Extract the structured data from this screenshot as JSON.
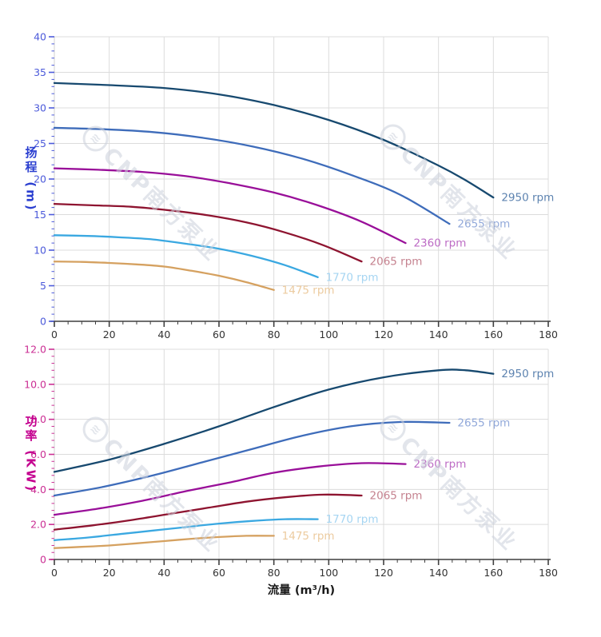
{
  "page": {
    "background": "#ffffff"
  },
  "watermark": {
    "logo_glyph": "≋",
    "text": "CNP南方泵业",
    "color": "#ccd1dc"
  },
  "x_axis": {
    "title": "流量 (m³/h)"
  },
  "chart_data": [
    {
      "type": "line",
      "name": "head-vs-flow",
      "ylabel": "扬程 (m)",
      "xlabel": "流量 (m³/h)",
      "xlim": [
        0,
        180
      ],
      "ylim": [
        0,
        40
      ],
      "x_major": 20,
      "x_minor": 5,
      "y_major": 5,
      "y_minor": 1,
      "x_tick_labels": [
        "0",
        "20",
        "40",
        "60",
        "80",
        "100",
        "120",
        "140",
        "160",
        "180"
      ],
      "y_tick_labels": [
        "0",
        "5",
        "10",
        "15",
        "20",
        "25",
        "30",
        "35",
        "40"
      ],
      "accent": "#4c5ada",
      "grid": true,
      "legend_position": "at-line-end",
      "series": [
        {
          "name": "2950 rpm",
          "color": "#17496f",
          "label_color": "#5d83b0",
          "points": [
            [
              0,
              33.5
            ],
            [
              20,
              33.2
            ],
            [
              40,
              32.8
            ],
            [
              60,
              31.9
            ],
            [
              80,
              30.4
            ],
            [
              100,
              28.3
            ],
            [
              120,
              25.5
            ],
            [
              140,
              21.9
            ],
            [
              150,
              19.8
            ],
            [
              160,
              17.4
            ]
          ]
        },
        {
          "name": "2655 rpm",
          "color": "#3e6cba",
          "label_color": "#92a9da",
          "points": [
            [
              0,
              27.2
            ],
            [
              18,
              27.0
            ],
            [
              36,
              26.6
            ],
            [
              54,
              25.8
            ],
            [
              72,
              24.6
            ],
            [
              90,
              22.9
            ],
            [
              108,
              20.6
            ],
            [
              126,
              17.8
            ],
            [
              144,
              13.7
            ]
          ]
        },
        {
          "name": "2360 rpm",
          "color": "#990f99",
          "label_color": "#bd6cc5",
          "points": [
            [
              0,
              21.5
            ],
            [
              16,
              21.3
            ],
            [
              32,
              21.0
            ],
            [
              48,
              20.4
            ],
            [
              64,
              19.4
            ],
            [
              80,
              18.1
            ],
            [
              96,
              16.3
            ],
            [
              112,
              14.0
            ],
            [
              128,
              11.0
            ]
          ]
        },
        {
          "name": "2065 rpm",
          "color": "#8e1430",
          "label_color": "#c5828f",
          "points": [
            [
              0,
              16.5
            ],
            [
              14,
              16.3
            ],
            [
              28,
              16.1
            ],
            [
              42,
              15.6
            ],
            [
              56,
              14.9
            ],
            [
              70,
              13.9
            ],
            [
              84,
              12.5
            ],
            [
              98,
              10.7
            ],
            [
              112,
              8.4
            ]
          ]
        },
        {
          "name": "1770 rpm",
          "color": "#3aa8e1",
          "label_color": "#a6d5f2",
          "points": [
            [
              0,
              12.1
            ],
            [
              12,
              12.0
            ],
            [
              24,
              11.8
            ],
            [
              36,
              11.5
            ],
            [
              48,
              10.9
            ],
            [
              60,
              10.2
            ],
            [
              72,
              9.2
            ],
            [
              84,
              7.9
            ],
            [
              96,
              6.2
            ]
          ]
        },
        {
          "name": "1475 rpm",
          "color": "#d5a160",
          "label_color": "#eccb9f",
          "points": [
            [
              0,
              8.4
            ],
            [
              10,
              8.35
            ],
            [
              20,
              8.2
            ],
            [
              30,
              8.0
            ],
            [
              40,
              7.7
            ],
            [
              50,
              7.1
            ],
            [
              60,
              6.4
            ],
            [
              70,
              5.5
            ],
            [
              80,
              4.4
            ]
          ]
        }
      ]
    },
    {
      "type": "line",
      "name": "power-vs-flow",
      "ylabel": "功率 (KW)",
      "xlabel": "流量 (m³/h)",
      "xlim": [
        0,
        180
      ],
      "ylim": [
        0,
        12
      ],
      "x_major": 20,
      "x_minor": 5,
      "y_major": 2,
      "y_minor": 0.4,
      "x_tick_labels": [
        "0",
        "20",
        "40",
        "60",
        "80",
        "100",
        "120",
        "140",
        "160",
        "180"
      ],
      "y_tick_labels": [
        "0",
        "2.0",
        "4.0",
        "6.0",
        "8.0",
        "10.0",
        "12.0"
      ],
      "accent": "#cb2f94",
      "grid": true,
      "legend_position": "at-line-end",
      "series": [
        {
          "name": "2950 rpm",
          "color": "#17496f",
          "label_color": "#5d83b0",
          "points": [
            [
              0,
              5.0
            ],
            [
              20,
              5.7
            ],
            [
              40,
              6.6
            ],
            [
              60,
              7.6
            ],
            [
              80,
              8.7
            ],
            [
              100,
              9.7
            ],
            [
              120,
              10.4
            ],
            [
              140,
              10.8
            ],
            [
              150,
              10.8
            ],
            [
              160,
              10.6
            ]
          ]
        },
        {
          "name": "2655 rpm",
          "color": "#3e6cba",
          "label_color": "#92a9da",
          "points": [
            [
              0,
              3.65
            ],
            [
              18,
              4.15
            ],
            [
              36,
              4.8
            ],
            [
              54,
              5.55
            ],
            [
              72,
              6.3
            ],
            [
              90,
              7.05
            ],
            [
              108,
              7.6
            ],
            [
              126,
              7.85
            ],
            [
              144,
              7.8
            ]
          ]
        },
        {
          "name": "2360 rpm",
          "color": "#990f99",
          "label_color": "#bd6cc5",
          "points": [
            [
              0,
              2.55
            ],
            [
              16,
              2.9
            ],
            [
              32,
              3.35
            ],
            [
              48,
              3.9
            ],
            [
              64,
              4.4
            ],
            [
              80,
              4.95
            ],
            [
              96,
              5.3
            ],
            [
              112,
              5.5
            ],
            [
              128,
              5.45
            ]
          ]
        },
        {
          "name": "2065 rpm",
          "color": "#8e1430",
          "label_color": "#c5828f",
          "points": [
            [
              0,
              1.7
            ],
            [
              14,
              1.95
            ],
            [
              28,
              2.25
            ],
            [
              42,
              2.6
            ],
            [
              56,
              2.95
            ],
            [
              70,
              3.3
            ],
            [
              84,
              3.55
            ],
            [
              98,
              3.7
            ],
            [
              112,
              3.65
            ]
          ]
        },
        {
          "name": "1770 rpm",
          "color": "#3aa8e1",
          "label_color": "#a6d5f2",
          "points": [
            [
              0,
              1.1
            ],
            [
              12,
              1.25
            ],
            [
              24,
              1.45
            ],
            [
              36,
              1.65
            ],
            [
              48,
              1.85
            ],
            [
              60,
              2.05
            ],
            [
              72,
              2.2
            ],
            [
              84,
              2.3
            ],
            [
              96,
              2.3
            ]
          ]
        },
        {
          "name": "1475 rpm",
          "color": "#d5a160",
          "label_color": "#eccb9f",
          "points": [
            [
              0,
              0.65
            ],
            [
              10,
              0.72
            ],
            [
              20,
              0.8
            ],
            [
              30,
              0.92
            ],
            [
              40,
              1.05
            ],
            [
              50,
              1.18
            ],
            [
              60,
              1.28
            ],
            [
              70,
              1.35
            ],
            [
              80,
              1.35
            ]
          ]
        }
      ]
    }
  ]
}
